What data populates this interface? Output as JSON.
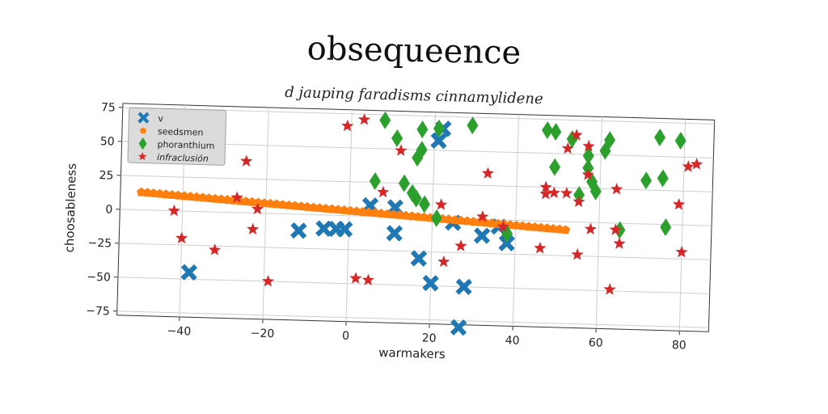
{
  "title": "obsequeence",
  "subtitle": "d jauping faradisms cinnamylidene",
  "chart_data": {
    "type": "scatter",
    "xlabel": "warmakers",
    "ylabel": "choosableness",
    "xlim": [
      -55,
      87
    ],
    "ylim": [
      -78,
      78
    ],
    "xticks": [
      -40,
      -20,
      0,
      20,
      40,
      60,
      80
    ],
    "yticks": [
      -75,
      -50,
      -25,
      0,
      25,
      50,
      75
    ],
    "grid": true,
    "legend_position": "top-left",
    "series": [
      {
        "name": "v",
        "color": "#1f77b4",
        "marker": "x",
        "points": [
          [
            -38,
            -45
          ],
          [
            -12,
            -12
          ],
          [
            -6,
            -10
          ],
          [
            -3,
            -10
          ],
          [
            -1,
            -10
          ],
          [
            5,
            8
          ],
          [
            11,
            7
          ],
          [
            11,
            -12
          ],
          [
            17,
            -30
          ],
          [
            20,
            -48
          ],
          [
            21,
            57
          ],
          [
            22,
            66
          ],
          [
            25,
            -3
          ],
          [
            27,
            -80
          ],
          [
            28,
            -50
          ],
          [
            32,
            -12
          ],
          [
            36,
            -5
          ],
          [
            38,
            -17
          ]
        ]
      },
      {
        "name": "seedsmen",
        "color": "#ff7f0e",
        "marker": "pentagon",
        "line": {
          "x_from": -50,
          "x_to": 52,
          "y_from": 13,
          "y_to": -6,
          "count": 70
        }
      },
      {
        "name": "phoranthium",
        "color": "#2ca02c",
        "marker": "diamond",
        "points": [
          [
            6,
            26
          ],
          [
            8,
            71
          ],
          [
            11,
            58
          ],
          [
            13,
            25
          ],
          [
            15,
            18
          ],
          [
            16,
            14
          ],
          [
            16,
            44
          ],
          [
            17,
            50
          ],
          [
            17,
            65
          ],
          [
            18,
            10
          ],
          [
            21,
            0
          ],
          [
            21,
            66
          ],
          [
            29,
            69
          ],
          [
            38,
            -10
          ],
          [
            47,
            67
          ],
          [
            49,
            40
          ],
          [
            49,
            66
          ],
          [
            53,
            61
          ],
          [
            55,
            20
          ],
          [
            57,
            49
          ],
          [
            57,
            40
          ],
          [
            58,
            30
          ],
          [
            59,
            23
          ],
          [
            61,
            53
          ],
          [
            62,
            61
          ],
          [
            65,
            -5
          ],
          [
            71,
            32
          ],
          [
            74,
            64
          ],
          [
            75,
            34
          ],
          [
            76,
            -2
          ],
          [
            79,
            62
          ]
        ]
      },
      {
        "name": "infraclusión",
        "color": "#d62728",
        "marker": "star",
        "points": [
          [
            -42,
            0
          ],
          [
            -40,
            -20
          ],
          [
            -32,
            -28
          ],
          [
            -27,
            11
          ],
          [
            -25,
            38
          ],
          [
            -23,
            -12
          ],
          [
            -22,
            3
          ],
          [
            -19,
            -50
          ],
          [
            -1,
            66
          ],
          [
            2,
            -46
          ],
          [
            3,
            71
          ],
          [
            5,
            -47
          ],
          [
            8,
            18
          ],
          [
            12,
            49
          ],
          [
            22,
            10
          ],
          [
            23,
            -32
          ],
          [
            27,
            -20
          ],
          [
            32,
            2
          ],
          [
            33,
            34
          ],
          [
            37,
            -5
          ],
          [
            46,
            -20
          ],
          [
            47,
            25
          ],
          [
            47,
            20
          ],
          [
            49,
            21
          ],
          [
            52,
            21
          ],
          [
            52,
            54
          ],
          [
            54,
            64
          ],
          [
            55,
            -24
          ],
          [
            55,
            15
          ],
          [
            57,
            56
          ],
          [
            57,
            35
          ],
          [
            58,
            -5
          ],
          [
            63,
            -49
          ],
          [
            64,
            25
          ],
          [
            64,
            -5
          ],
          [
            65,
            -15
          ],
          [
            79,
            15
          ],
          [
            80,
            -20
          ],
          [
            81,
            43
          ],
          [
            83,
            45
          ]
        ]
      }
    ]
  }
}
